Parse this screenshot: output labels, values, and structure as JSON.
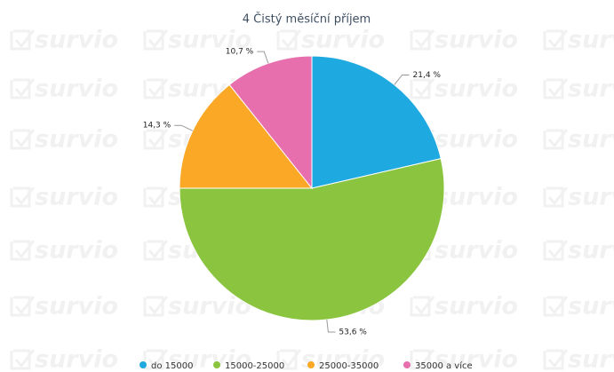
{
  "chart_data": {
    "type": "pie",
    "title": "4 Čistý měsíční příjem",
    "categories": [
      "do 15000",
      "15000-25000",
      "25000-35000",
      "35000 a více"
    ],
    "values": [
      21.4,
      53.6,
      14.3,
      10.7
    ],
    "value_labels": [
      "21,4 %",
      "53,6 %",
      "14,3 %",
      "10,7 %"
    ],
    "colors": [
      "#1fa9e1",
      "#8bc540",
      "#fba826",
      "#e86fae"
    ],
    "legend": "bottom"
  },
  "watermark": "survio"
}
